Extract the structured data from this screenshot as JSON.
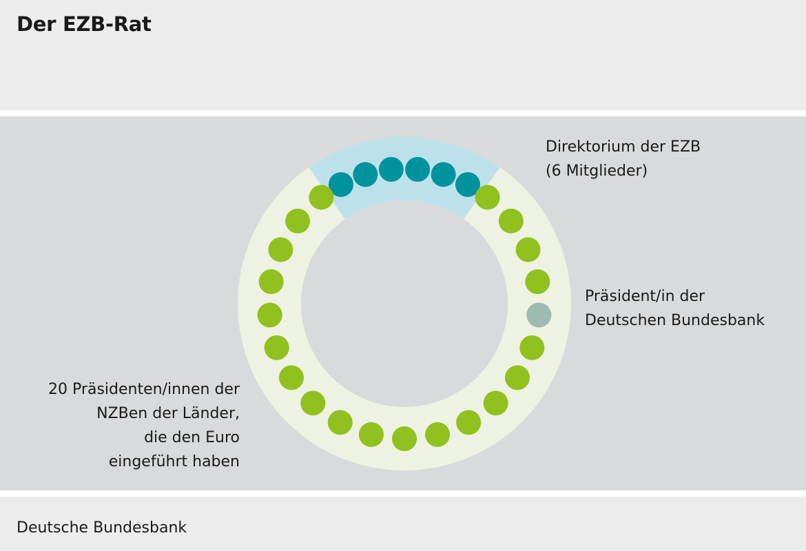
{
  "title": "Der EZB-Rat",
  "footer": "Deutsche Bundesbank",
  "colors": {
    "header_bg": "#ececec",
    "panel_bg": "#d9dadb",
    "ring_national": "#eef2e2",
    "ring_board": "#bde1ea",
    "board_member": "#00939e",
    "national_member": "#91c11e",
    "bundesbank_member": "#9dbbb0"
  },
  "labels": {
    "board": [
      "Direktorium der EZB",
      "(6 Mitglieder)"
    ],
    "bundesbank": [
      "Präsident/in der",
      "Deutschen Bundesbank"
    ],
    "national": [
      "20 Präsidenten/innen der",
      "NZBen der Länder,",
      "die den Euro",
      "eingeführt haben"
    ]
  },
  "members": {
    "board": 6,
    "national_central_banks": 20,
    "bundesbank": 1
  }
}
